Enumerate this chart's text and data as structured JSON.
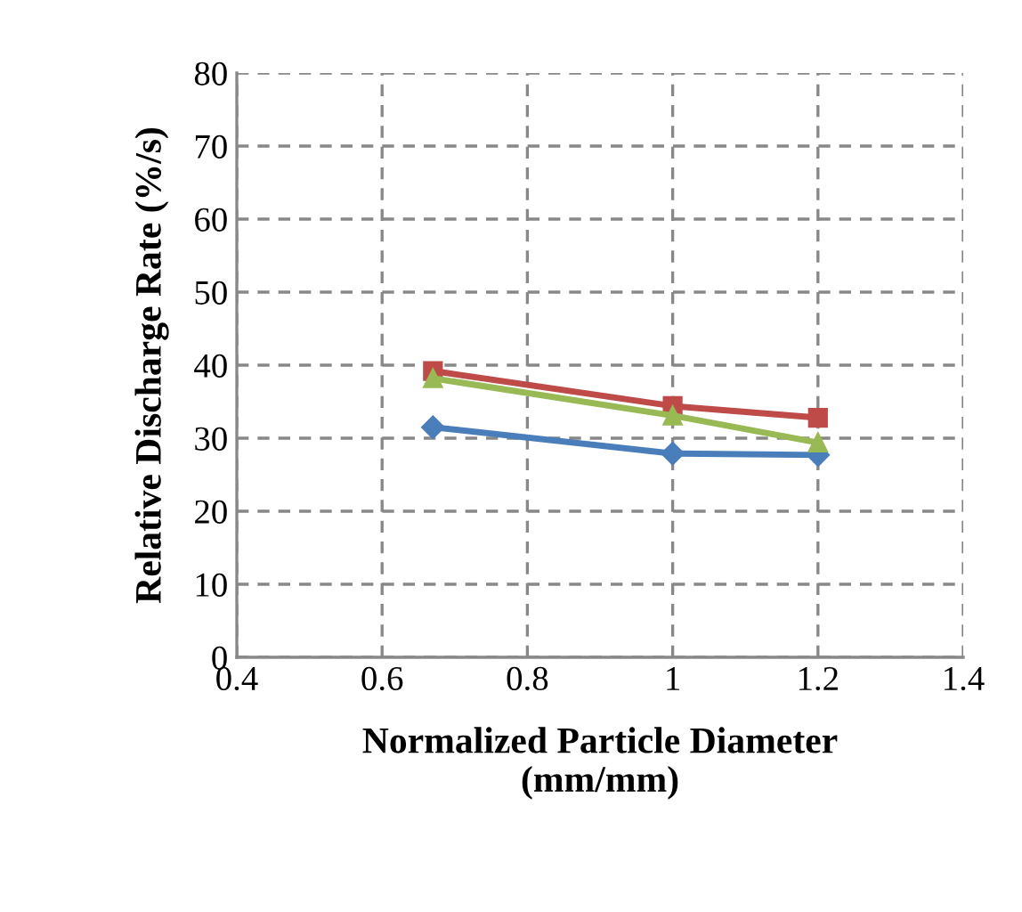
{
  "chart_data": {
    "type": "line",
    "xlabel": "Normalized Particle Diameter\n(mm/mm)",
    "ylabel": "Relative Discharge Rate (%/s)",
    "x": [
      0.67,
      1.0,
      1.2
    ],
    "series": [
      {
        "color": "#4a7ebb",
        "marker": "diamond",
        "values": [
          31.5,
          27.9,
          27.7
        ]
      },
      {
        "color": "#be4b48",
        "marker": "square",
        "values": [
          39.2,
          34.4,
          32.8
        ]
      },
      {
        "color": "#98b954",
        "marker": "triangle",
        "values": [
          38.2,
          33.1,
          29.4
        ]
      }
    ],
    "xlim": [
      0.4,
      1.4
    ],
    "xticks": [
      0.4,
      0.6,
      0.8,
      1,
      1.2,
      1.4
    ],
    "ylim": [
      0,
      80
    ],
    "yticks": [
      0,
      10,
      20,
      30,
      40,
      50,
      60,
      70,
      80
    ],
    "grid": true,
    "legend": false,
    "line_style": "solid"
  }
}
